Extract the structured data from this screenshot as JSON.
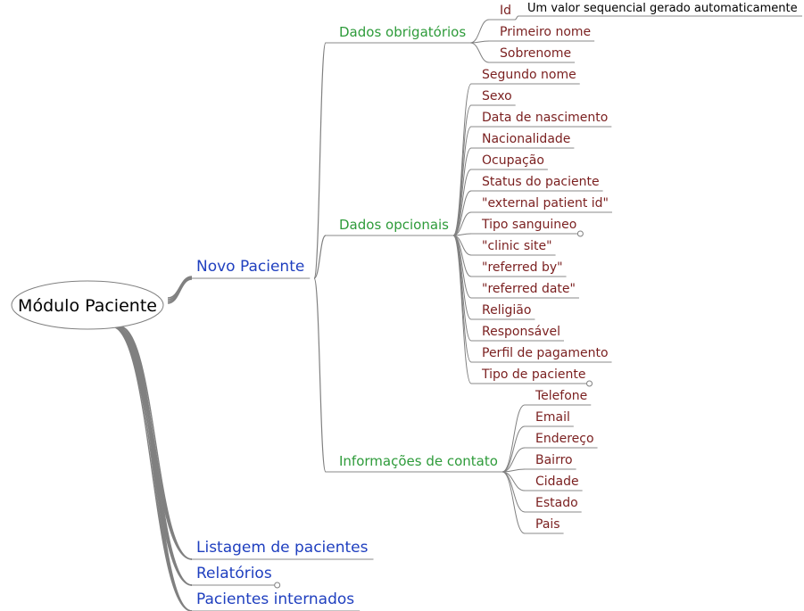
{
  "mindmap": {
    "root": {
      "label": "Módulo Paciente"
    },
    "colors": {
      "root_border": "#808080",
      "level1_text": "#1f3fbf",
      "level2_text": "#2e9b3a",
      "leaf_text": "#7a1f1f",
      "edge": "#808080",
      "underline": "#8a8a8a",
      "collapsed_marker": "#808080"
    },
    "branches": [
      {
        "label": "Novo Paciente",
        "children": [
          {
            "label": "Dados obrigatórios",
            "children": [
              {
                "label": "Id",
                "children": [
                  {
                    "label": "Um valor sequencial gerado automaticamente"
                  }
                ]
              },
              {
                "label": "Primeiro nome"
              },
              {
                "label": "Sobrenome"
              }
            ]
          },
          {
            "label": "Dados opcionais",
            "children": [
              {
                "label": "Segundo nome"
              },
              {
                "label": "Sexo"
              },
              {
                "label": "Data de nascimento"
              },
              {
                "label": "Nacionalidade"
              },
              {
                "label": "Ocupação"
              },
              {
                "label": "Status do paciente"
              },
              {
                "label": "\"external patient id\""
              },
              {
                "label": "Tipo sanguineo",
                "collapsed": true
              },
              {
                "label": "\"clinic site\""
              },
              {
                "label": "\"referred by\""
              },
              {
                "label": "\"referred date\""
              },
              {
                "label": "Religião"
              },
              {
                "label": "Responsável"
              },
              {
                "label": "Perfil de pagamento"
              },
              {
                "label": "Tipo de paciente",
                "collapsed": true
              }
            ]
          },
          {
            "label": "Informações de contato",
            "children": [
              {
                "label": "Telefone"
              },
              {
                "label": "Email"
              },
              {
                "label": "Endereço"
              },
              {
                "label": "Bairro"
              },
              {
                "label": "Cidade"
              },
              {
                "label": "Estado"
              },
              {
                "label": "Pais"
              }
            ]
          }
        ]
      },
      {
        "label": "Listagem de pacientes"
      },
      {
        "label": "Relatórios",
        "collapsed": true
      },
      {
        "label": "Pacientes internados"
      }
    ]
  }
}
